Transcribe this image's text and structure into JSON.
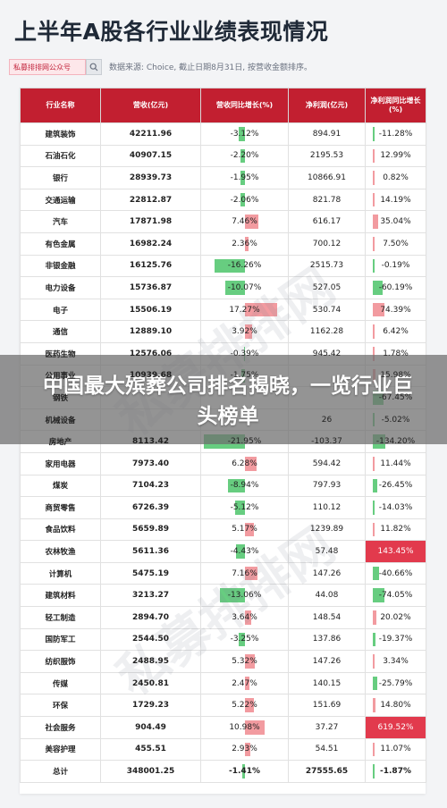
{
  "title": "上半年A股各行业业绩表现情况",
  "badge": "私募排排网公众号",
  "source": "数据来源: Choice, 截止日期8月31日, 按营收金额排序。",
  "headers": [
    "行业名称",
    "营收(亿元)",
    "营收同比增长(%)",
    "净利润(亿元)",
    "净利润同比增长(%)"
  ],
  "rows": [
    {
      "industry": "建筑装饰",
      "revenue": "42211.96",
      "rev_growth": "-3.12%",
      "rev_growth_val": -3.12,
      "profit": "894.91",
      "profit_growth": "-11.28%",
      "profit_growth_val": -11.28
    },
    {
      "industry": "石油石化",
      "revenue": "40907.15",
      "rev_growth": "-2.20%",
      "rev_growth_val": -2.2,
      "profit": "2195.53",
      "profit_growth": "12.99%",
      "profit_growth_val": 12.99
    },
    {
      "industry": "银行",
      "revenue": "28939.73",
      "rev_growth": "-1.95%",
      "rev_growth_val": -1.95,
      "profit": "10866.91",
      "profit_growth": "0.82%",
      "profit_growth_val": 0.82
    },
    {
      "industry": "交通运输",
      "revenue": "22812.87",
      "rev_growth": "-2.06%",
      "rev_growth_val": -2.06,
      "profit": "821.78",
      "profit_growth": "14.19%",
      "profit_growth_val": 14.19
    },
    {
      "industry": "汽车",
      "revenue": "17871.98",
      "rev_growth": "7.46%",
      "rev_growth_val": 7.46,
      "profit": "616.17",
      "profit_growth": "35.04%",
      "profit_growth_val": 35.04
    },
    {
      "industry": "有色金属",
      "revenue": "16982.24",
      "rev_growth": "2.36%",
      "rev_growth_val": 2.36,
      "profit": "700.12",
      "profit_growth": "7.50%",
      "profit_growth_val": 7.5
    },
    {
      "industry": "非银金融",
      "revenue": "16125.76",
      "rev_growth": "-16.26%",
      "rev_growth_val": -16.26,
      "profit": "2515.73",
      "profit_growth": "-0.19%",
      "profit_growth_val": -0.19
    },
    {
      "industry": "电力设备",
      "revenue": "15736.87",
      "rev_growth": "-10.07%",
      "rev_growth_val": -10.07,
      "profit": "527.05",
      "profit_growth": "-60.19%",
      "profit_growth_val": -60.19
    },
    {
      "industry": "电子",
      "revenue": "15506.19",
      "rev_growth": "17.27%",
      "rev_growth_val": 17.27,
      "profit": "530.74",
      "profit_growth": "74.39%",
      "profit_growth_val": 74.39
    },
    {
      "industry": "通信",
      "revenue": "12889.10",
      "rev_growth": "3.92%",
      "rev_growth_val": 3.92,
      "profit": "1162.28",
      "profit_growth": "6.42%",
      "profit_growth_val": 6.42
    },
    {
      "industry": "医药生物",
      "revenue": "12576.06",
      "rev_growth": "-0.39%",
      "rev_growth_val": -0.39,
      "profit": "945.42",
      "profit_growth": "1.78%",
      "profit_growth_val": 1.78
    },
    {
      "industry": "公用事业",
      "revenue": "10939.68",
      "rev_growth": "-1.75%",
      "rev_growth_val": -1.75,
      "profit": "",
      "profit_growth": "15.98%",
      "profit_growth_val": 15.98
    },
    {
      "industry": "钢铁",
      "revenue": "",
      "rev_growth": "",
      "rev_growth_val": 0,
      "profit": "",
      "profit_growth": "-67.45%",
      "profit_growth_val": -67.45
    },
    {
      "industry": "机械设备",
      "revenue": "",
      "rev_growth": "",
      "rev_growth_val": 0,
      "profit": "26",
      "profit_growth": "-5.02%",
      "profit_growth_val": -5.02
    },
    {
      "industry": "房地产",
      "revenue": "8113.42",
      "rev_growth": "-21.95%",
      "rev_growth_val": -21.95,
      "profit": "-103.37",
      "profit_growth": "-134.20%",
      "profit_growth_val": -134.2
    },
    {
      "industry": "家用电器",
      "revenue": "7973.40",
      "rev_growth": "6.28%",
      "rev_growth_val": 6.28,
      "profit": "594.42",
      "profit_growth": "11.44%",
      "profit_growth_val": 11.44
    },
    {
      "industry": "煤炭",
      "revenue": "7104.23",
      "rev_growth": "-8.94%",
      "rev_growth_val": -8.94,
      "profit": "797.93",
      "profit_growth": "-26.45%",
      "profit_growth_val": -26.45
    },
    {
      "industry": "商贸零售",
      "revenue": "6726.39",
      "rev_growth": "-5.12%",
      "rev_growth_val": -5.12,
      "profit": "110.12",
      "profit_growth": "-14.03%",
      "profit_growth_val": -14.03
    },
    {
      "industry": "食品饮料",
      "revenue": "5659.89",
      "rev_growth": "5.17%",
      "rev_growth_val": 5.17,
      "profit": "1239.89",
      "profit_growth": "11.82%",
      "profit_growth_val": 11.82
    },
    {
      "industry": "农林牧渔",
      "revenue": "5611.36",
      "rev_growth": "-4.43%",
      "rev_growth_val": -4.43,
      "profit": "57.48",
      "profit_growth": "143.45%",
      "profit_growth_val": 143.45
    },
    {
      "industry": "计算机",
      "revenue": "5475.19",
      "rev_growth": "7.16%",
      "rev_growth_val": 7.16,
      "profit": "147.26",
      "profit_growth": "-40.66%",
      "profit_growth_val": -40.66
    },
    {
      "industry": "建筑材料",
      "revenue": "3213.27",
      "rev_growth": "-13.06%",
      "rev_growth_val": -13.06,
      "profit": "44.08",
      "profit_growth": "-74.05%",
      "profit_growth_val": -74.05
    },
    {
      "industry": "轻工制造",
      "revenue": "2894.70",
      "rev_growth": "3.64%",
      "rev_growth_val": 3.64,
      "profit": "148.54",
      "profit_growth": "20.02%",
      "profit_growth_val": 20.02
    },
    {
      "industry": "国防军工",
      "revenue": "2544.50",
      "rev_growth": "-3.25%",
      "rev_growth_val": -3.25,
      "profit": "137.86",
      "profit_growth": "-19.37%",
      "profit_growth_val": -19.37
    },
    {
      "industry": "纺织服饰",
      "revenue": "2488.95",
      "rev_growth": "5.32%",
      "rev_growth_val": 5.32,
      "profit": "147.26",
      "profit_growth": "3.34%",
      "profit_growth_val": 3.34
    },
    {
      "industry": "传媒",
      "revenue": "2450.81",
      "rev_growth": "2.47%",
      "rev_growth_val": 2.47,
      "profit": "140.15",
      "profit_growth": "-25.79%",
      "profit_growth_val": -25.79
    },
    {
      "industry": "环保",
      "revenue": "1729.23",
      "rev_growth": "5.22%",
      "rev_growth_val": 5.22,
      "profit": "151.69",
      "profit_growth": "14.80%",
      "profit_growth_val": 14.8
    },
    {
      "industry": "社会服务",
      "revenue": "904.49",
      "rev_growth": "10.98%",
      "rev_growth_val": 10.98,
      "profit": "37.27",
      "profit_growth": "619.52%",
      "profit_growth_val": 619.52
    },
    {
      "industry": "美容护理",
      "revenue": "455.51",
      "rev_growth": "2.93%",
      "rev_growth_val": 2.93,
      "profit": "54.51",
      "profit_growth": "11.07%",
      "profit_growth_val": 11.07
    },
    {
      "industry": "总计",
      "revenue": "348001.25",
      "rev_growth": "-1.41%",
      "rev_growth_val": -1.41,
      "profit": "27555.65",
      "profit_growth": "-1.87%",
      "profit_growth_val": -1.87
    }
  ],
  "overlay_text": "中国最大殡葬公司排名揭晓，一览行业巨头榜单",
  "colors": {
    "header": "#c21f30",
    "positive_bar": "#f08a8f",
    "negative_bar": "#4cc46a",
    "highlight": "#e23a4d"
  }
}
